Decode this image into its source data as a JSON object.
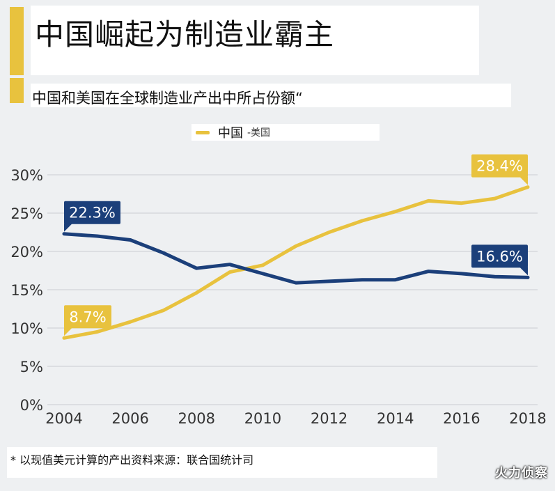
{
  "header": {
    "title": "中国崛起为制造业霸主",
    "subtitle": "中国和美国在全球制造业产出中所占份额“"
  },
  "legend": {
    "china_label": "中国",
    "us_label": "-美国"
  },
  "footnote": "* 以现值美元计算的产出资料来源：联合国统计司",
  "watermark": "火力侦察",
  "colors": {
    "china": "#e8c23e",
    "us": "#1b3f7a",
    "grid": "#c9ccd1",
    "axis_text": "#333333",
    "background": "#eef0f2"
  },
  "chart_data": {
    "type": "line",
    "title": "中国和美国在全球制造业产出中所占份额“",
    "x": [
      2004,
      2005,
      2006,
      2007,
      2008,
      2009,
      2010,
      2011,
      2012,
      2013,
      2014,
      2015,
      2016,
      2017,
      2018
    ],
    "x_ticks": [
      "2004",
      "2006",
      "2008",
      "2010",
      "2012",
      "2014",
      "2016",
      "2018"
    ],
    "y_ticks": [
      "0%",
      "5%",
      "10%",
      "15%",
      "20%",
      "25%",
      "30%"
    ],
    "ylim": [
      0,
      30
    ],
    "grid": true,
    "legend_position": "top",
    "series": [
      {
        "name": "中国",
        "key": "china",
        "values": [
          8.7,
          9.5,
          10.8,
          12.3,
          14.6,
          17.3,
          18.2,
          20.7,
          22.5,
          24.0,
          25.2,
          26.6,
          26.3,
          26.9,
          28.4
        ]
      },
      {
        "name": "美国",
        "key": "us",
        "values": [
          22.3,
          22.0,
          21.5,
          19.8,
          17.8,
          18.3,
          17.1,
          15.9,
          16.1,
          16.3,
          16.3,
          17.4,
          17.1,
          16.7,
          16.6
        ]
      }
    ],
    "annotations": [
      {
        "series": "us",
        "x": 2004,
        "text": "22.3%"
      },
      {
        "series": "us",
        "x": 2018,
        "text": "16.6%"
      },
      {
        "series": "china",
        "x": 2004,
        "text": "8.7%"
      },
      {
        "series": "china",
        "x": 2018,
        "text": "28.4%"
      }
    ]
  }
}
